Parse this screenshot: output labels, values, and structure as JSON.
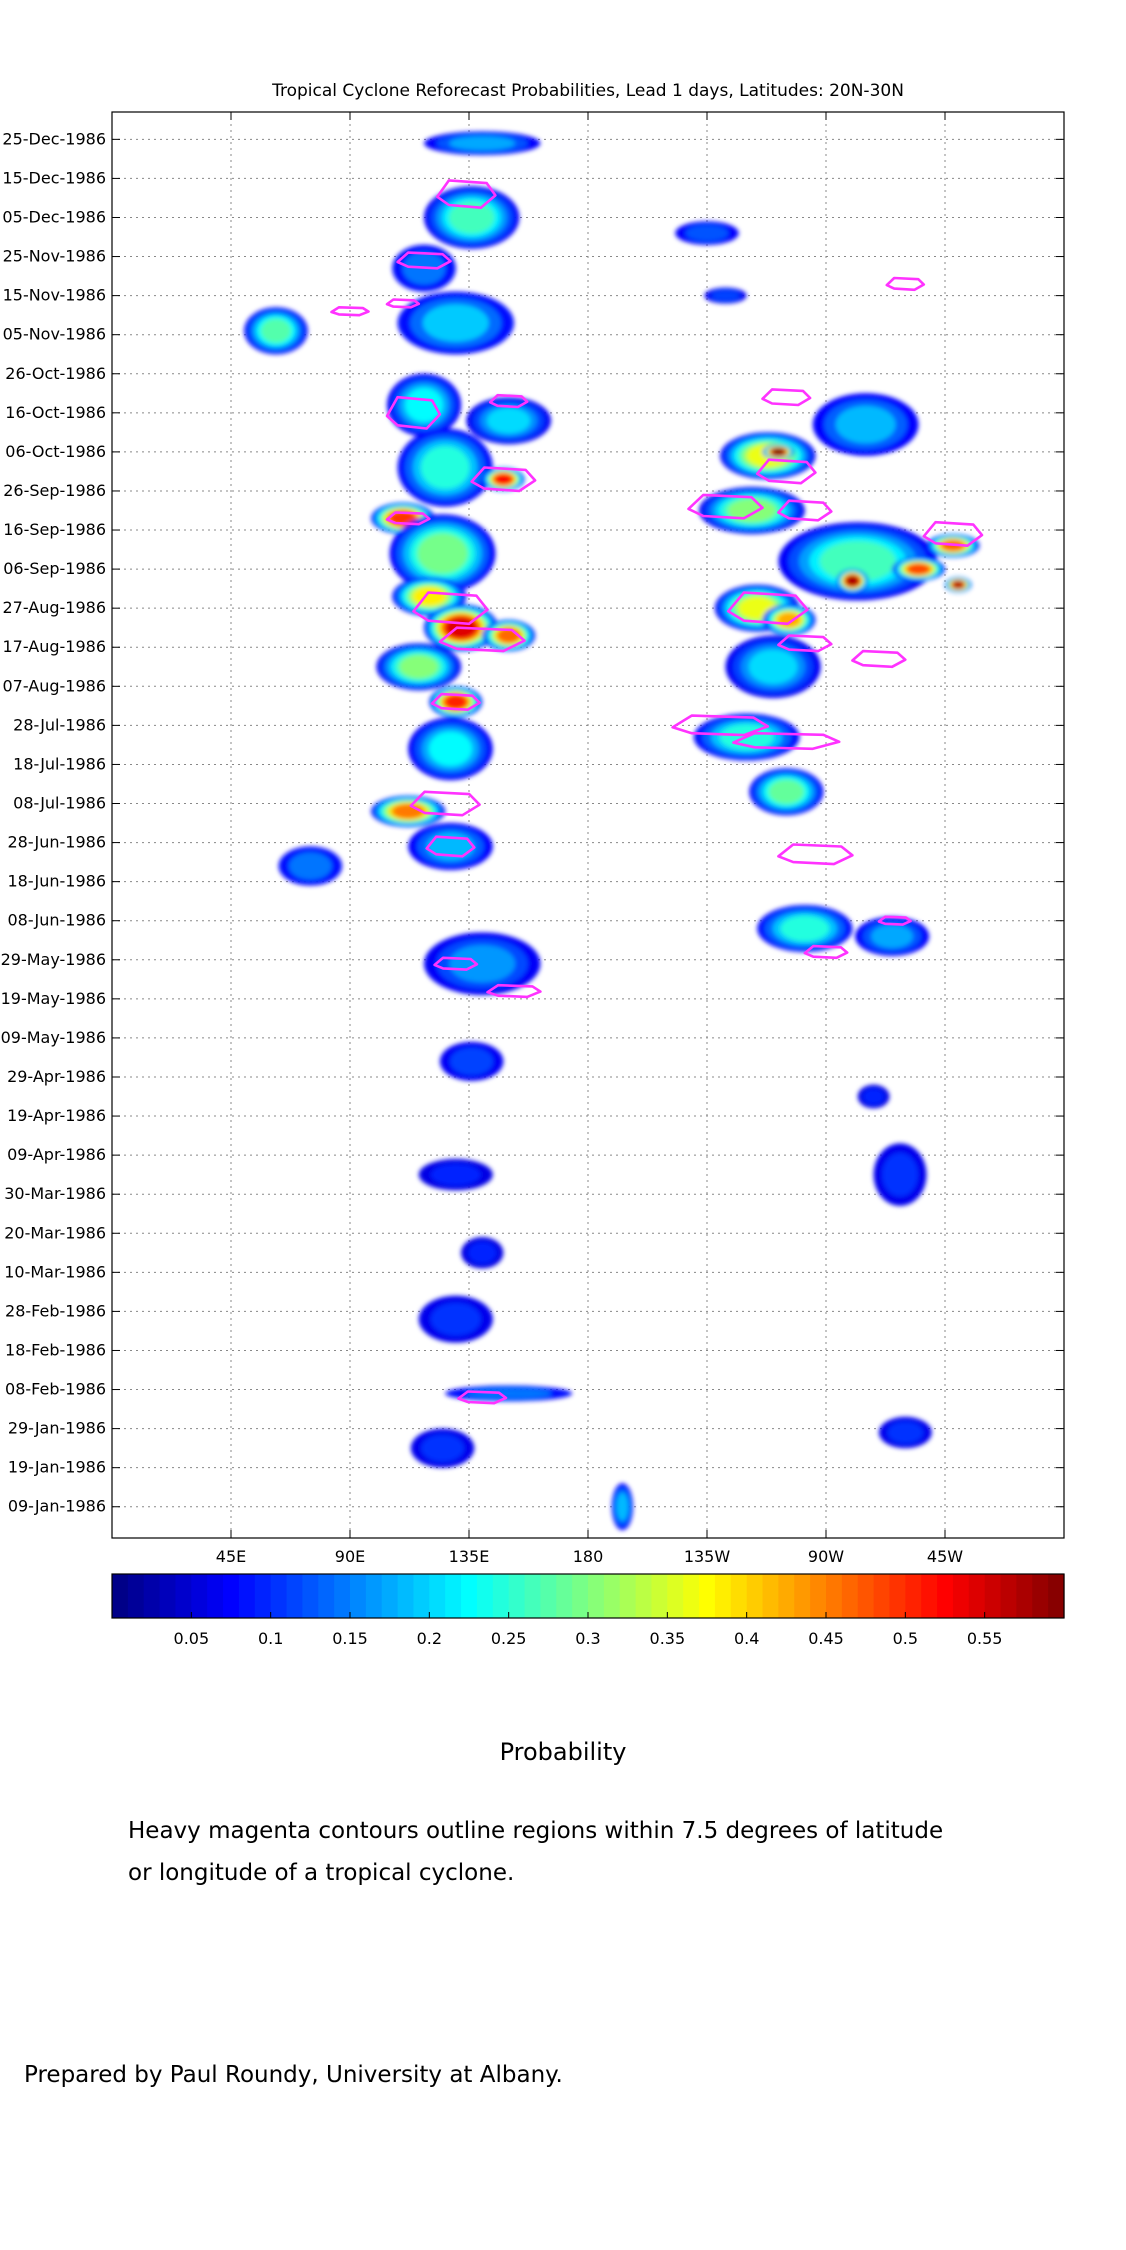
{
  "chart_data": {
    "type": "heatmap",
    "title": "Tropical Cyclone Reforecast Probabilities, Lead 1 days, Latitudes: 20N-30N",
    "xlabel": "",
    "ylabel": "",
    "x_range_deg_east": [
      0,
      360
    ],
    "x_ticks": [
      {
        "lon": 45,
        "label": "45E"
      },
      {
        "lon": 90,
        "label": "90E"
      },
      {
        "lon": 135,
        "label": "135E"
      },
      {
        "lon": 180,
        "label": "180"
      },
      {
        "lon": 225,
        "label": "135W"
      },
      {
        "lon": 270,
        "label": "90W"
      },
      {
        "lon": 315,
        "label": "45W"
      }
    ],
    "y_range": [
      "1986-01-01",
      "1987-01-01"
    ],
    "y_ticks": [
      {
        "date": "1986-01-09",
        "label": "09-Jan-1986"
      },
      {
        "date": "1986-01-19",
        "label": "19-Jan-1986"
      },
      {
        "date": "1986-01-29",
        "label": "29-Jan-1986"
      },
      {
        "date": "1986-02-08",
        "label": "08-Feb-1986"
      },
      {
        "date": "1986-02-18",
        "label": "18-Feb-1986"
      },
      {
        "date": "1986-02-28",
        "label": "28-Feb-1986"
      },
      {
        "date": "1986-03-10",
        "label": "10-Mar-1986"
      },
      {
        "date": "1986-03-20",
        "label": "20-Mar-1986"
      },
      {
        "date": "1986-03-30",
        "label": "30-Mar-1986"
      },
      {
        "date": "1986-04-09",
        "label": "09-Apr-1986"
      },
      {
        "date": "1986-04-19",
        "label": "19-Apr-1986"
      },
      {
        "date": "1986-04-29",
        "label": "29-Apr-1986"
      },
      {
        "date": "1986-05-09",
        "label": "09-May-1986"
      },
      {
        "date": "1986-05-19",
        "label": "19-May-1986"
      },
      {
        "date": "1986-05-29",
        "label": "29-May-1986"
      },
      {
        "date": "1986-06-08",
        "label": "08-Jun-1986"
      },
      {
        "date": "1986-06-18",
        "label": "18-Jun-1986"
      },
      {
        "date": "1986-06-28",
        "label": "28-Jun-1986"
      },
      {
        "date": "1986-07-08",
        "label": "08-Jul-1986"
      },
      {
        "date": "1986-07-18",
        "label": "18-Jul-1986"
      },
      {
        "date": "1986-07-28",
        "label": "28-Jul-1986"
      },
      {
        "date": "1986-08-07",
        "label": "07-Aug-1986"
      },
      {
        "date": "1986-08-17",
        "label": "17-Aug-1986"
      },
      {
        "date": "1986-08-27",
        "label": "27-Aug-1986"
      },
      {
        "date": "1986-09-06",
        "label": "06-Sep-1986"
      },
      {
        "date": "1986-09-16",
        "label": "16-Sep-1986"
      },
      {
        "date": "1986-09-26",
        "label": "26-Sep-1986"
      },
      {
        "date": "1986-10-06",
        "label": "06-Oct-1986"
      },
      {
        "date": "1986-10-16",
        "label": "16-Oct-1986"
      },
      {
        "date": "1986-10-26",
        "label": "26-Oct-1986"
      },
      {
        "date": "1986-11-05",
        "label": "05-Nov-1986"
      },
      {
        "date": "1986-11-15",
        "label": "15-Nov-1986"
      },
      {
        "date": "1986-11-25",
        "label": "25-Nov-1986"
      },
      {
        "date": "1986-12-05",
        "label": "05-Dec-1986"
      },
      {
        "date": "1986-12-15",
        "label": "15-Dec-1986"
      },
      {
        "date": "1986-12-25",
        "label": "25-Dec-1986"
      }
    ],
    "grid": true,
    "colormap": "jet",
    "colorbar": {
      "orientation": "horizontal",
      "range": [
        0,
        0.6
      ],
      "ticks": [
        0.05,
        0.1,
        0.15,
        0.2,
        0.25,
        0.3,
        0.35,
        0.4,
        0.45,
        0.5,
        0.55
      ],
      "tick_labels": [
        "0.05",
        "0.1",
        "0.15",
        "0.2",
        "0.25",
        "0.3",
        "0.35",
        "0.4",
        "0.45",
        "0.5",
        "0.55"
      ]
    },
    "contour_color": "#ff33ff",
    "blobs": [
      {
        "lon": 140,
        "date": "1986-12-24",
        "dlon": 22,
        "ddays": 3,
        "p": 0.15
      },
      {
        "lon": 136,
        "date": "1986-12-05",
        "dlon": 18,
        "ddays": 8,
        "p": 0.24
      },
      {
        "lon": 118,
        "date": "1986-11-22",
        "dlon": 12,
        "ddays": 6,
        "p": 0.12
      },
      {
        "lon": 130,
        "date": "1986-11-08",
        "dlon": 22,
        "ddays": 8,
        "p": 0.17
      },
      {
        "lon": 62,
        "date": "1986-11-06",
        "dlon": 12,
        "ddays": 6,
        "p": 0.25
      },
      {
        "lon": 118,
        "date": "1986-10-18",
        "dlon": 14,
        "ddays": 8,
        "p": 0.2
      },
      {
        "lon": 150,
        "date": "1986-10-14",
        "dlon": 16,
        "ddays": 6,
        "p": 0.18
      },
      {
        "lon": 126,
        "date": "1986-10-02",
        "dlon": 18,
        "ddays": 10,
        "p": 0.22
      },
      {
        "lon": 148,
        "date": "1986-09-29",
        "dlon": 8,
        "ddays": 3,
        "p": 0.5
      },
      {
        "lon": 110,
        "date": "1986-09-19",
        "dlon": 12,
        "ddays": 4,
        "p": 0.47
      },
      {
        "lon": 125,
        "date": "1986-09-10",
        "dlon": 20,
        "ddays": 10,
        "p": 0.27
      },
      {
        "lon": 120,
        "date": "1986-08-30",
        "dlon": 14,
        "ddays": 5,
        "p": 0.36
      },
      {
        "lon": 132,
        "date": "1986-08-22",
        "dlon": 14,
        "ddays": 6,
        "p": 0.52
      },
      {
        "lon": 150,
        "date": "1986-08-20",
        "dlon": 10,
        "ddays": 4,
        "p": 0.44
      },
      {
        "lon": 116,
        "date": "1986-08-12",
        "dlon": 16,
        "ddays": 6,
        "p": 0.28
      },
      {
        "lon": 130,
        "date": "1986-08-03",
        "dlon": 10,
        "ddays": 4,
        "p": 0.48
      },
      {
        "lon": 128,
        "date": "1986-07-22",
        "dlon": 16,
        "ddays": 8,
        "p": 0.2
      },
      {
        "lon": 112,
        "date": "1986-07-06",
        "dlon": 14,
        "ddays": 4,
        "p": 0.43
      },
      {
        "lon": 128,
        "date": "1986-06-27",
        "dlon": 16,
        "ddays": 6,
        "p": 0.16
      },
      {
        "lon": 75,
        "date": "1986-06-22",
        "dlon": 12,
        "ddays": 5,
        "p": 0.12
      },
      {
        "lon": 140,
        "date": "1986-05-28",
        "dlon": 22,
        "ddays": 8,
        "p": 0.14
      },
      {
        "lon": 136,
        "date": "1986-05-03",
        "dlon": 12,
        "ddays": 5,
        "p": 0.09
      },
      {
        "lon": 130,
        "date": "1986-04-04",
        "dlon": 14,
        "ddays": 4,
        "p": 0.07
      },
      {
        "lon": 140,
        "date": "1986-03-15",
        "dlon": 8,
        "ddays": 4,
        "p": 0.07
      },
      {
        "lon": 130,
        "date": "1986-02-26",
        "dlon": 14,
        "ddays": 6,
        "p": 0.08
      },
      {
        "lon": 150,
        "date": "1986-02-07",
        "dlon": 24,
        "ddays": 2,
        "p": 0.12
      },
      {
        "lon": 125,
        "date": "1986-01-24",
        "dlon": 12,
        "ddays": 5,
        "p": 0.08
      },
      {
        "lon": 193,
        "date": "1986-01-09",
        "dlon": 4,
        "ddays": 6,
        "p": 0.16
      },
      {
        "lon": 248,
        "date": "1986-10-05",
        "dlon": 18,
        "ddays": 6,
        "p": 0.34
      },
      {
        "lon": 252,
        "date": "1986-10-06",
        "dlon": 6,
        "ddays": 2,
        "p": 0.58
      },
      {
        "lon": 285,
        "date": "1986-10-13",
        "dlon": 20,
        "ddays": 8,
        "p": 0.16
      },
      {
        "lon": 242,
        "date": "1986-09-21",
        "dlon": 20,
        "ddays": 6,
        "p": 0.28
      },
      {
        "lon": 282,
        "date": "1986-09-08",
        "dlon": 30,
        "ddays": 10,
        "p": 0.24
      },
      {
        "lon": 280,
        "date": "1986-09-03",
        "dlon": 6,
        "ddays": 3,
        "p": 0.55
      },
      {
        "lon": 305,
        "date": "1986-09-06",
        "dlon": 10,
        "ddays": 3,
        "p": 0.46
      },
      {
        "lon": 318,
        "date": "1986-09-12",
        "dlon": 10,
        "ddays": 3,
        "p": 0.44
      },
      {
        "lon": 320,
        "date": "1986-09-02",
        "dlon": 5,
        "ddays": 2,
        "p": 0.55
      },
      {
        "lon": 244,
        "date": "1986-08-27",
        "dlon": 16,
        "ddays": 6,
        "p": 0.34
      },
      {
        "lon": 256,
        "date": "1986-08-24",
        "dlon": 10,
        "ddays": 4,
        "p": 0.4
      },
      {
        "lon": 250,
        "date": "1986-08-12",
        "dlon": 18,
        "ddays": 8,
        "p": 0.18
      },
      {
        "lon": 240,
        "date": "1986-07-25",
        "dlon": 20,
        "ddays": 6,
        "p": 0.22
      },
      {
        "lon": 255,
        "date": "1986-07-11",
        "dlon": 14,
        "ddays": 6,
        "p": 0.26
      },
      {
        "lon": 262,
        "date": "1986-06-06",
        "dlon": 18,
        "ddays": 6,
        "p": 0.22
      },
      {
        "lon": 295,
        "date": "1986-06-04",
        "dlon": 14,
        "ddays": 5,
        "p": 0.15
      },
      {
        "lon": 298,
        "date": "1986-04-04",
        "dlon": 10,
        "ddays": 8,
        "p": 0.08
      },
      {
        "lon": 288,
        "date": "1986-04-24",
        "dlon": 6,
        "ddays": 3,
        "p": 0.07
      },
      {
        "lon": 300,
        "date": "1986-01-28",
        "dlon": 10,
        "ddays": 4,
        "p": 0.08
      },
      {
        "lon": 232,
        "date": "1986-11-15",
        "dlon": 8,
        "ddays": 2,
        "p": 0.09
      },
      {
        "lon": 225,
        "date": "1986-12-01",
        "dlon": 12,
        "ddays": 3,
        "p": 0.1
      }
    ],
    "contours": [
      {
        "lon": 134,
        "date": "1986-12-11",
        "dlon": 22,
        "ddays": 7
      },
      {
        "lon": 118,
        "date": "1986-11-24",
        "dlon": 20,
        "ddays": 4
      },
      {
        "lon": 110,
        "date": "1986-11-13",
        "dlon": 12,
        "ddays": 2
      },
      {
        "lon": 114,
        "date": "1986-10-16",
        "dlon": 20,
        "ddays": 8
      },
      {
        "lon": 150,
        "date": "1986-10-19",
        "dlon": 14,
        "ddays": 3
      },
      {
        "lon": 148,
        "date": "1986-09-29",
        "dlon": 24,
        "ddays": 6
      },
      {
        "lon": 112,
        "date": "1986-09-19",
        "dlon": 16,
        "ddays": 3
      },
      {
        "lon": 128,
        "date": "1986-08-27",
        "dlon": 28,
        "ddays": 8
      },
      {
        "lon": 140,
        "date": "1986-08-19",
        "dlon": 32,
        "ddays": 6
      },
      {
        "lon": 130,
        "date": "1986-08-03",
        "dlon": 18,
        "ddays": 4
      },
      {
        "lon": 126,
        "date": "1986-07-08",
        "dlon": 26,
        "ddays": 6
      },
      {
        "lon": 128,
        "date": "1986-06-27",
        "dlon": 18,
        "ddays": 5
      },
      {
        "lon": 130,
        "date": "1986-05-28",
        "dlon": 16,
        "ddays": 3
      },
      {
        "lon": 152,
        "date": "1986-05-21",
        "dlon": 20,
        "ddays": 3
      },
      {
        "lon": 140,
        "date": "1986-02-06",
        "dlon": 18,
        "ddays": 3
      },
      {
        "lon": 90,
        "date": "1986-11-11",
        "dlon": 14,
        "ddays": 2
      },
      {
        "lon": 300,
        "date": "1986-11-18",
        "dlon": 14,
        "ddays": 3
      },
      {
        "lon": 255,
        "date": "1986-10-20",
        "dlon": 18,
        "ddays": 4
      },
      {
        "lon": 255,
        "date": "1986-10-01",
        "dlon": 22,
        "ddays": 6
      },
      {
        "lon": 232,
        "date": "1986-09-22",
        "dlon": 28,
        "ddays": 6
      },
      {
        "lon": 262,
        "date": "1986-09-21",
        "dlon": 20,
        "ddays": 5
      },
      {
        "lon": 318,
        "date": "1986-09-15",
        "dlon": 22,
        "ddays": 6
      },
      {
        "lon": 248,
        "date": "1986-08-27",
        "dlon": 30,
        "ddays": 8
      },
      {
        "lon": 262,
        "date": "1986-08-18",
        "dlon": 20,
        "ddays": 4
      },
      {
        "lon": 290,
        "date": "1986-08-14",
        "dlon": 20,
        "ddays": 4
      },
      {
        "lon": 230,
        "date": "1986-07-28",
        "dlon": 36,
        "ddays": 5
      },
      {
        "lon": 255,
        "date": "1986-07-24",
        "dlon": 40,
        "ddays": 4
      },
      {
        "lon": 266,
        "date": "1986-06-25",
        "dlon": 28,
        "ddays": 5
      },
      {
        "lon": 270,
        "date": "1986-05-31",
        "dlon": 16,
        "ddays": 3
      },
      {
        "lon": 296,
        "date": "1986-06-08",
        "dlon": 12,
        "ddays": 2
      }
    ]
  },
  "texts": {
    "colorbar_label": "Probability",
    "note_line1": "Heavy magenta contours outline regions within 7.5 degrees of latitude",
    "note_line2": "or longitude of a tropical cyclone.",
    "credit": "Prepared by Paul Roundy, University at Albany."
  }
}
